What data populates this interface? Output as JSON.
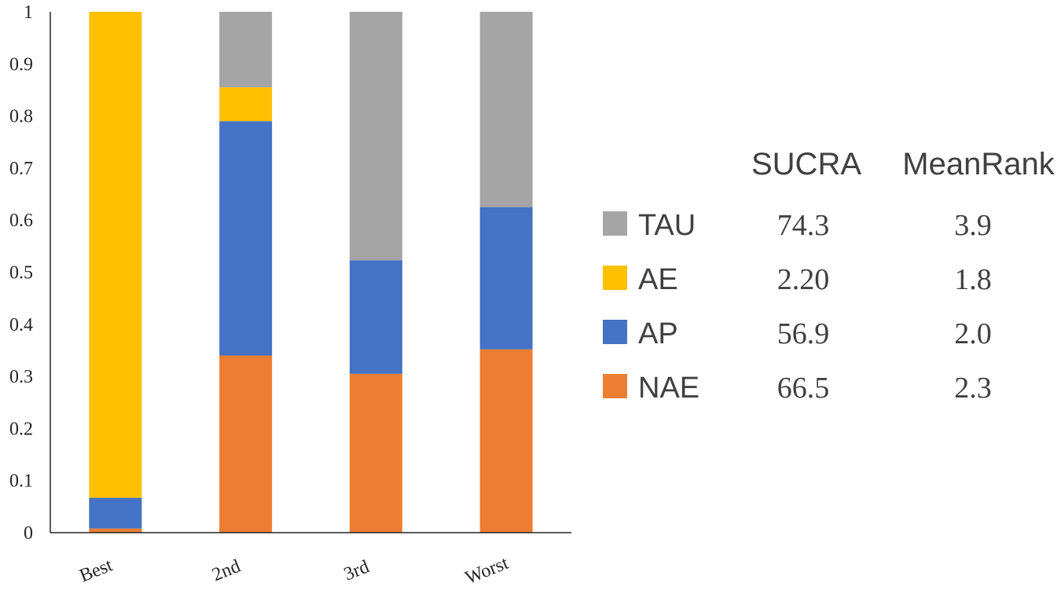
{
  "chart_data": {
    "type": "bar",
    "stacked": true,
    "categories": [
      "Best",
      "2nd",
      "3rd",
      "Worst"
    ],
    "ylim": [
      0,
      1
    ],
    "yticks": [
      "0",
      "0.1",
      "0.2",
      "0.3",
      "0.4",
      "0.5",
      "0.6",
      "0.7",
      "0.8",
      "0.9",
      "1"
    ],
    "series": [
      {
        "name": "NAE",
        "color": "#ED7D31",
        "values": [
          0.008,
          0.34,
          0.305,
          0.352
        ]
      },
      {
        "name": "AP",
        "color": "#4472C4",
        "values": [
          0.059,
          0.45,
          0.218,
          0.273
        ]
      },
      {
        "name": "AE",
        "color": "#FFC000",
        "values": [
          0.933,
          0.065,
          0.0,
          0.0
        ]
      },
      {
        "name": "TAU",
        "color": "#A5A5A5",
        "values": [
          0.0,
          0.145,
          0.477,
          0.375
        ]
      }
    ],
    "grid": false,
    "legend_placement": "right"
  },
  "summary_table": {
    "headers": [
      "SUCRA",
      "MeanRank"
    ],
    "rows": [
      {
        "label": "TAU",
        "color": "#A5A5A5",
        "sucra": "74.3",
        "meanrank": "3.9"
      },
      {
        "label": "AE",
        "color": "#FFC000",
        "sucra": "2.20",
        "meanrank": "1.8"
      },
      {
        "label": "AP",
        "color": "#4472C4",
        "sucra": "56.9",
        "meanrank": "2.0"
      },
      {
        "label": "NAE",
        "color": "#ED7D31",
        "sucra": "66.5",
        "meanrank": "2.3"
      }
    ]
  }
}
